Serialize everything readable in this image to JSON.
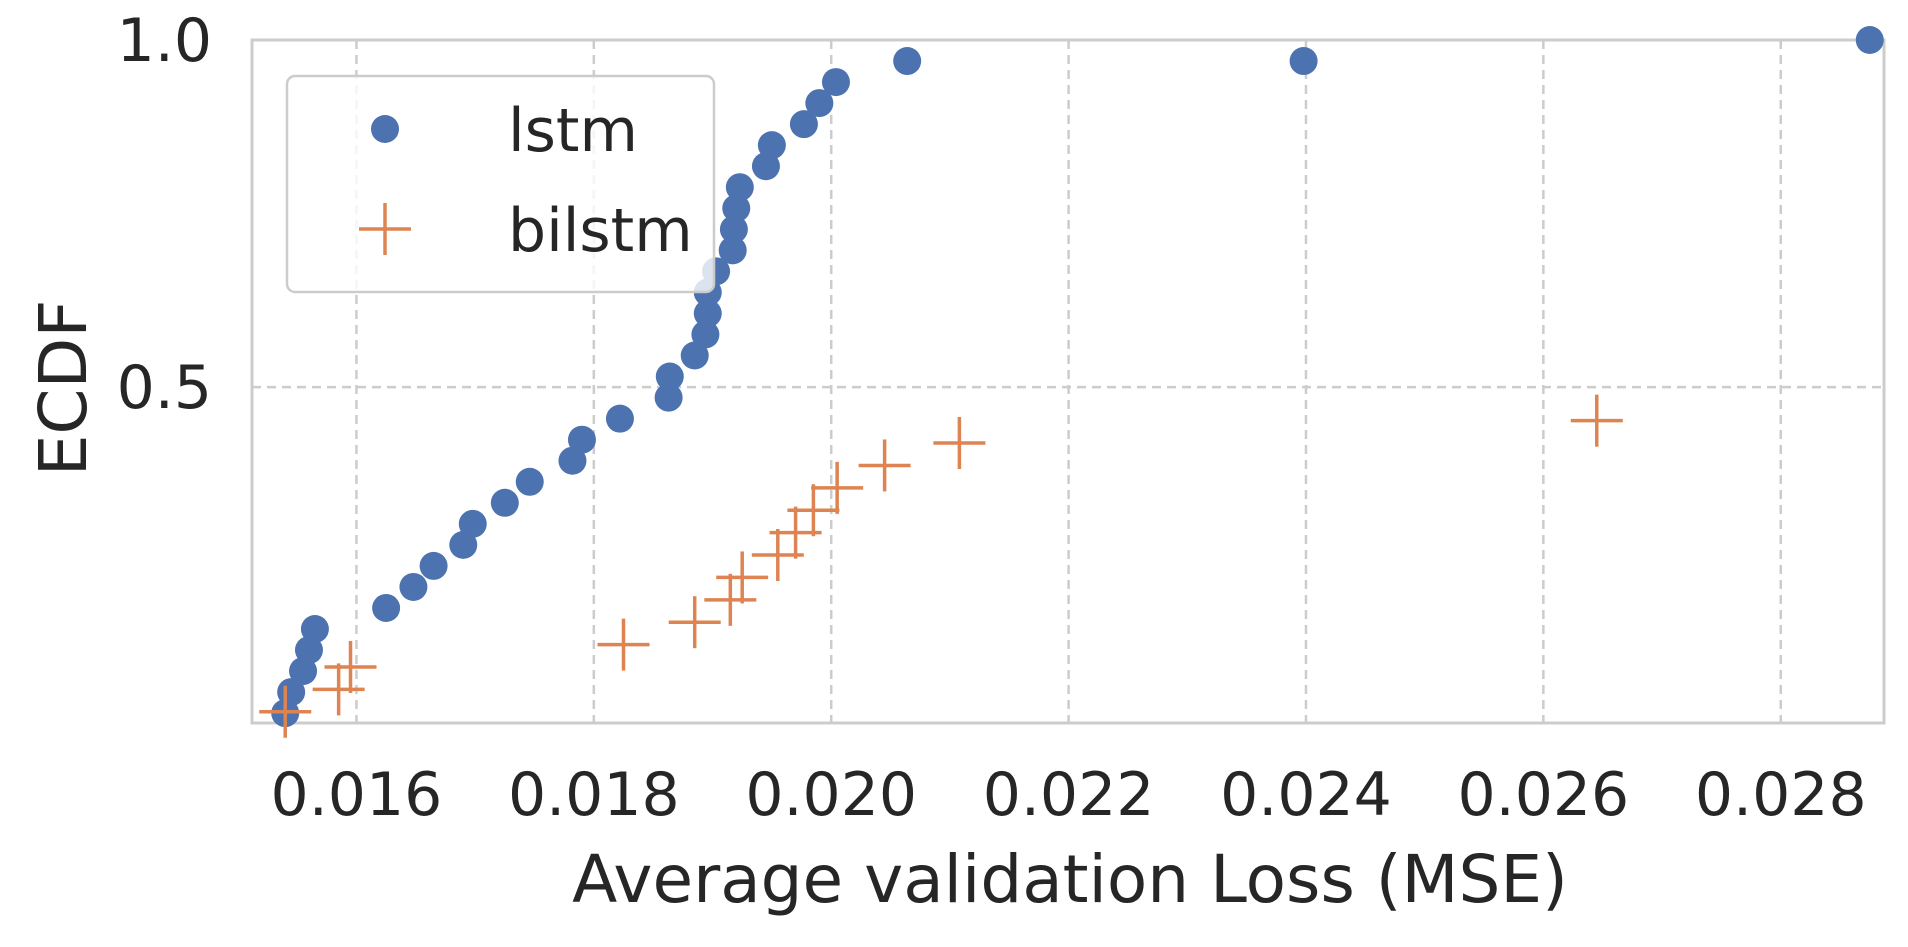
{
  "chart_data": {
    "type": "scatter",
    "title": "",
    "xlabel": "Average validation Loss (MSE)",
    "ylabel": "ECDF",
    "xlim": [
      0.01512,
      0.02887
    ],
    "ylim": [
      0.0161,
      1.0
    ],
    "grid": true,
    "legend_position": "top-left",
    "x_ticks": [
      {
        "value": 0.016,
        "label": "0.016"
      },
      {
        "value": 0.018,
        "label": "0.018"
      },
      {
        "value": 0.02,
        "label": "0.020"
      },
      {
        "value": 0.022,
        "label": "0.022"
      },
      {
        "value": 0.024,
        "label": "0.024"
      },
      {
        "value": 0.026,
        "label": "0.026"
      },
      {
        "value": 0.028,
        "label": "0.028"
      }
    ],
    "y_ticks": [
      {
        "value": 0.5,
        "label": "0.5"
      },
      {
        "value": 1.0,
        "label": "1.0"
      }
    ],
    "series": [
      {
        "name": "lstm",
        "marker": "circle",
        "color": "#4c72b0",
        "points": [
          [
            0.0154,
            0.0303
          ],
          [
            0.01545,
            0.0606
          ],
          [
            0.01555,
            0.0909
          ],
          [
            0.0156,
            0.1212
          ],
          [
            0.01565,
            0.1515
          ],
          [
            0.01625,
            0.1818
          ],
          [
            0.01648,
            0.2121
          ],
          [
            0.01665,
            0.2424
          ],
          [
            0.0169,
            0.2727
          ],
          [
            0.01698,
            0.303
          ],
          [
            0.01725,
            0.3333
          ],
          [
            0.01746,
            0.3636
          ],
          [
            0.01782,
            0.3939
          ],
          [
            0.0179,
            0.4242
          ],
          [
            0.01822,
            0.4545
          ],
          [
            0.01863,
            0.4848
          ],
          [
            0.01864,
            0.5152
          ],
          [
            0.01885,
            0.5455
          ],
          [
            0.01894,
            0.5758
          ],
          [
            0.01896,
            0.6061
          ],
          [
            0.01896,
            0.6364
          ],
          [
            0.01903,
            0.6667
          ],
          [
            0.01917,
            0.697
          ],
          [
            0.01918,
            0.7273
          ],
          [
            0.0192,
            0.7576
          ],
          [
            0.01923,
            0.7879
          ],
          [
            0.01945,
            0.8182
          ],
          [
            0.0195,
            0.8485
          ],
          [
            0.01977,
            0.8788
          ],
          [
            0.0199,
            0.9091
          ],
          [
            0.02004,
            0.9394
          ],
          [
            0.02064,
            0.9697
          ],
          [
            0.02398,
            0.9697
          ],
          [
            0.02875,
            1.0
          ]
        ]
      },
      {
        "name": "bilstm",
        "marker": "plus",
        "color": "#dd8452",
        "points": [
          [
            0.0154,
            0.0323
          ],
          [
            0.01585,
            0.0645
          ],
          [
            0.01595,
            0.0968
          ],
          [
            0.01825,
            0.129
          ],
          [
            0.01885,
            0.1613
          ],
          [
            0.01915,
            0.1935
          ],
          [
            0.01925,
            0.2258
          ],
          [
            0.01955,
            0.2581
          ],
          [
            0.0197,
            0.2903
          ],
          [
            0.01985,
            0.3226
          ],
          [
            0.02005,
            0.3548
          ],
          [
            0.02045,
            0.3871
          ],
          [
            0.02108,
            0.4194
          ],
          [
            0.02645,
            0.4516
          ]
        ]
      }
    ]
  }
}
